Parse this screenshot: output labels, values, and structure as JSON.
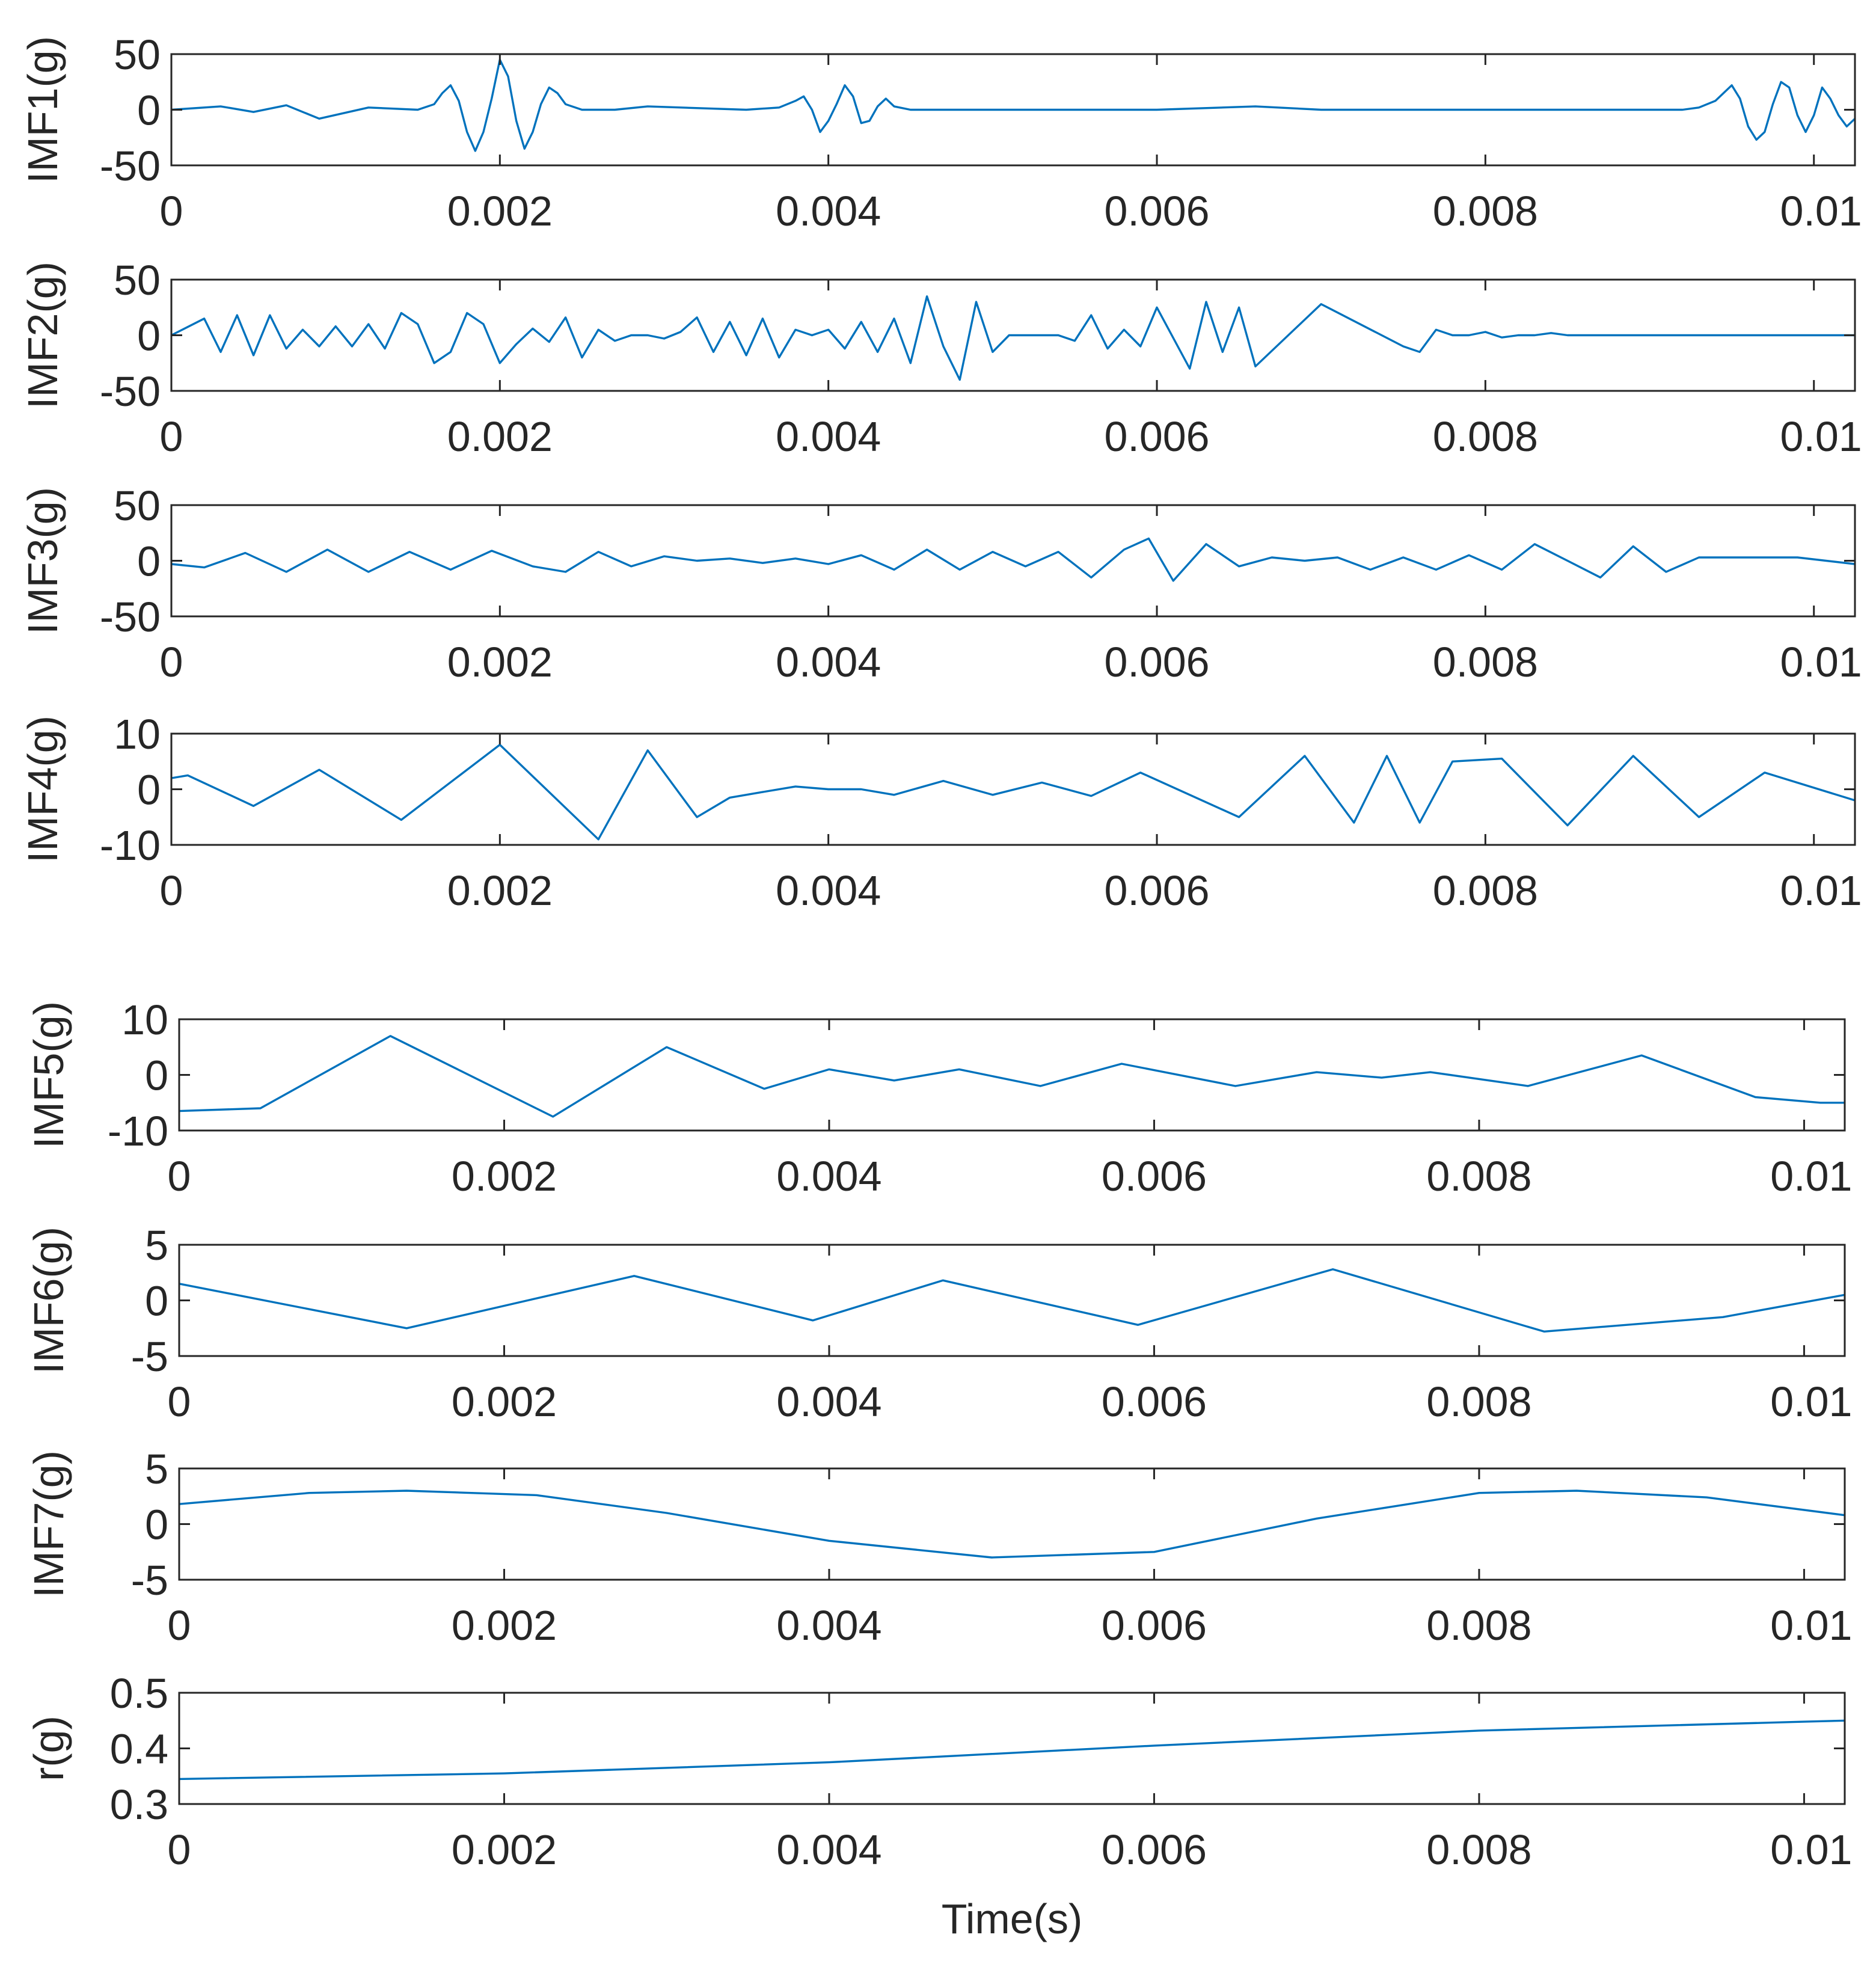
{
  "chart_data": [
    {
      "type": "line",
      "ylabel": "IMF1(g)",
      "xlim": [
        0,
        0.01025
      ],
      "ylim": [
        -50,
        50
      ],
      "yticks": [
        "50",
        "0",
        "-50"
      ],
      "xticks": [
        "0",
        "0.002",
        "0.004",
        "0.006",
        "0.008",
        "0.01"
      ],
      "series": [
        {
          "name": "IMF1",
          "x": [
            0,
            0.0003,
            0.0005,
            0.0007,
            0.0009,
            0.0012,
            0.0015,
            0.0016,
            0.00165,
            0.0017,
            0.00175,
            0.0018,
            0.00185,
            0.0019,
            0.00195,
            0.002,
            0.00205,
            0.0021,
            0.00215,
            0.0022,
            0.00225,
            0.0023,
            0.00235,
            0.0024,
            0.0025,
            0.0027,
            0.0029,
            0.0035,
            0.0037,
            0.0038,
            0.00385,
            0.0039,
            0.00395,
            0.004,
            0.00405,
            0.0041,
            0.00415,
            0.0042,
            0.00425,
            0.0043,
            0.00435,
            0.0044,
            0.0045,
            0.005,
            0.006,
            0.0066,
            0.007,
            0.008,
            0.009,
            0.0092,
            0.0093,
            0.0094,
            0.00945,
            0.0095,
            0.00955,
            0.0096,
            0.00965,
            0.0097,
            0.00975,
            0.0098,
            0.00985,
            0.0099,
            0.00995,
            0.01,
            0.01005,
            0.0101,
            0.01015,
            0.0102,
            0.01025
          ],
          "y": [
            0,
            3,
            -2,
            4,
            -8,
            2,
            0,
            5,
            15,
            22,
            8,
            -20,
            -37,
            -20,
            10,
            45,
            30,
            -10,
            -35,
            -20,
            5,
            20,
            15,
            5,
            0,
            0,
            3,
            0,
            2,
            8,
            12,
            0,
            -20,
            -10,
            5,
            22,
            12,
            -12,
            -10,
            3,
            10,
            3,
            0,
            0,
            0,
            3,
            0,
            0,
            0,
            0,
            2,
            8,
            15,
            22,
            10,
            -15,
            -27,
            -20,
            5,
            25,
            20,
            -5,
            -20,
            -5,
            20,
            10,
            -5,
            -15,
            -8
          ]
        }
      ]
    },
    {
      "type": "line",
      "ylabel": "IMF2(g)",
      "xlim": [
        0,
        0.01025
      ],
      "ylim": [
        -50,
        50
      ],
      "yticks": [
        "50",
        "0",
        "-50"
      ],
      "xticks": [
        "0",
        "0.002",
        "0.004",
        "0.006",
        "0.008",
        "0.01"
      ],
      "series": [
        {
          "name": "IMF2",
          "x": [
            0,
            0.0002,
            0.0003,
            0.0004,
            0.0005,
            0.0006,
            0.0007,
            0.0008,
            0.0009,
            0.001,
            0.0011,
            0.0012,
            0.0013,
            0.0014,
            0.0015,
            0.0016,
            0.0017,
            0.0018,
            0.0019,
            0.002,
            0.0021,
            0.0022,
            0.0023,
            0.0024,
            0.0025,
            0.0026,
            0.0027,
            0.0028,
            0.0029,
            0.003,
            0.0031,
            0.0032,
            0.0033,
            0.0034,
            0.0035,
            0.0036,
            0.0037,
            0.0038,
            0.0039,
            0.004,
            0.0041,
            0.0042,
            0.0043,
            0.0044,
            0.0045,
            0.0046,
            0.0047,
            0.0048,
            0.0049,
            0.005,
            0.0051,
            0.0052,
            0.0053,
            0.0054,
            0.0055,
            0.0056,
            0.0057,
            0.0058,
            0.0059,
            0.006,
            0.0062,
            0.0063,
            0.0064,
            0.0065,
            0.0066,
            0.007,
            0.0075,
            0.0076,
            0.0077,
            0.0078,
            0.0079,
            0.008,
            0.0081,
            0.0082,
            0.0083,
            0.0084,
            0.0085,
            0.0086,
            0.0087,
            0.0088,
            0.0089,
            0.009,
            0.0091,
            0.0092,
            0.0093,
            0.0094,
            0.0095,
            0.0096,
            0.0097,
            0.0098,
            0.0099,
            0.01,
            0.0101,
            0.01025
          ],
          "y": [
            0,
            15,
            -15,
            18,
            -18,
            18,
            -12,
            5,
            -10,
            8,
            -10,
            10,
            -12,
            20,
            10,
            -25,
            -15,
            20,
            10,
            -25,
            -8,
            6,
            -6,
            16,
            -20,
            5,
            -5,
            0,
            0,
            -3,
            3,
            16,
            -15,
            12,
            -18,
            15,
            -20,
            5,
            0,
            5,
            -12,
            12,
            -15,
            15,
            -25,
            35,
            -10,
            -40,
            30,
            -15,
            0,
            0,
            0,
            0,
            -5,
            18,
            -12,
            5,
            -10,
            25,
            -30,
            30,
            -15,
            25,
            -28,
            28,
            -10,
            -15,
            5,
            0,
            0,
            3,
            -2,
            0,
            0,
            2,
            0,
            0,
            0,
            0,
            0,
            0,
            0,
            0,
            0,
            0,
            0,
            0,
            0,
            0,
            0,
            0,
            0,
            0
          ]
        }
      ]
    },
    {
      "type": "line",
      "ylabel": "IMF3(g)",
      "xlim": [
        0,
        0.01025
      ],
      "ylim": [
        -50,
        50
      ],
      "yticks": [
        "50",
        "0",
        "-50"
      ],
      "xticks": [
        "0",
        "0.002",
        "0.004",
        "0.006",
        "0.008",
        "0.01"
      ],
      "series": [
        {
          "name": "IMF3",
          "x": [
            0,
            0.0002,
            0.00045,
            0.0007,
            0.00095,
            0.0012,
            0.00145,
            0.0017,
            0.00195,
            0.0022,
            0.0024,
            0.0026,
            0.0028,
            0.003,
            0.0032,
            0.0034,
            0.0036,
            0.0038,
            0.004,
            0.0042,
            0.0044,
            0.0046,
            0.0048,
            0.005,
            0.0052,
            0.0054,
            0.0056,
            0.0058,
            0.00595,
            0.0061,
            0.0063,
            0.0065,
            0.0067,
            0.0069,
            0.0071,
            0.0073,
            0.0075,
            0.0077,
            0.0079,
            0.0081,
            0.0083,
            0.0085,
            0.0087,
            0.0089,
            0.0091,
            0.0093,
            0.0095,
            0.0097,
            0.0099,
            0.01025
          ],
          "y": [
            -3,
            -6,
            7,
            -10,
            10,
            -10,
            8,
            -8,
            9,
            -5,
            -10,
            8,
            -5,
            4,
            0,
            2,
            -2,
            2,
            -3,
            5,
            -8,
            10,
            -8,
            8,
            -5,
            8,
            -15,
            10,
            20,
            -18,
            15,
            -5,
            3,
            0,
            3,
            -8,
            3,
            -8,
            5,
            -8,
            15,
            0,
            -15,
            13,
            -10,
            3,
            3,
            3,
            3,
            -3
          ]
        }
      ]
    },
    {
      "type": "line",
      "ylabel": "IMF4(g)",
      "xlim": [
        0,
        0.01025
      ],
      "ylim": [
        -10,
        10
      ],
      "yticks": [
        "10",
        "0",
        "-10"
      ],
      "xticks": [
        "0",
        "0.002",
        "0.004",
        "0.006",
        "0.008",
        "0.01"
      ],
      "series": [
        {
          "name": "IMF4",
          "x": [
            0,
            0.0001,
            0.0005,
            0.0009,
            0.0014,
            0.002,
            0.0026,
            0.0029,
            0.0032,
            0.0034,
            0.0036,
            0.0038,
            0.004,
            0.0042,
            0.0044,
            0.0047,
            0.005,
            0.0053,
            0.0056,
            0.0059,
            0.0062,
            0.0065,
            0.0069,
            0.0072,
            0.0074,
            0.0076,
            0.0078,
            0.0081,
            0.0085,
            0.0089,
            0.0093,
            0.0097,
            0.01025
          ],
          "y": [
            2,
            2.5,
            -3,
            3.5,
            -5.5,
            8,
            -9,
            7,
            -5,
            -1.5,
            -0.5,
            0.5,
            0,
            0,
            -1,
            1.5,
            -1,
            1.2,
            -1.2,
            3,
            -1,
            -5,
            6,
            -6,
            6,
            -6,
            5,
            5.5,
            -6.5,
            6,
            -5,
            3,
            -2
          ]
        }
      ]
    },
    {
      "type": "line",
      "ylabel": "IMF5(g)",
      "xlim": [
        0,
        0.01025
      ],
      "ylim": [
        -10,
        10
      ],
      "yticks": [
        "10",
        "0",
        "-10"
      ],
      "xticks": [
        "0",
        "0.002",
        "0.004",
        "0.006",
        "0.008",
        "0.01"
      ],
      "series": [
        {
          "name": "IMF5",
          "x": [
            0,
            0.0005,
            0.0013,
            0.0023,
            0.003,
            0.0036,
            0.004,
            0.0044,
            0.0048,
            0.0053,
            0.0058,
            0.0065,
            0.007,
            0.0074,
            0.0077,
            0.0083,
            0.009,
            0.0097,
            0.0101,
            0.01025
          ],
          "y": [
            -6.5,
            -6,
            7,
            -7.5,
            5,
            -2.5,
            1,
            -1,
            1,
            -2,
            2,
            -2,
            0.5,
            -0.5,
            0.5,
            -2,
            3.5,
            -4,
            -5,
            -5
          ]
        }
      ]
    },
    {
      "type": "line",
      "ylabel": "IMF6(g)",
      "xlim": [
        0,
        0.01025
      ],
      "ylim": [
        -5,
        5
      ],
      "yticks": [
        "5",
        "0",
        "-5"
      ],
      "xticks": [
        "0",
        "0.002",
        "0.004",
        "0.006",
        "0.008",
        "0.01"
      ],
      "series": [
        {
          "name": "IMF6",
          "x": [
            0,
            0.0014,
            0.0028,
            0.0039,
            0.0047,
            0.0059,
            0.0071,
            0.0084,
            0.0095,
            0.01025
          ],
          "y": [
            1.5,
            -2.5,
            2.2,
            -1.8,
            1.8,
            -2.2,
            2.8,
            -2.8,
            -1.5,
            0.5
          ]
        }
      ]
    },
    {
      "type": "line",
      "ylabel": "IMF7(g)",
      "xlim": [
        0,
        0.01025
      ],
      "ylim": [
        -5,
        5
      ],
      "yticks": [
        "5",
        "0",
        "-5"
      ],
      "xticks": [
        "0",
        "0.002",
        "0.004",
        "0.006",
        "0.008",
        "0.01"
      ],
      "series": [
        {
          "name": "IMF7",
          "x": [
            0,
            0.0008,
            0.0014,
            0.0022,
            0.003,
            0.004,
            0.005,
            0.006,
            0.007,
            0.008,
            0.0086,
            0.0094,
            0.01025
          ],
          "y": [
            1.8,
            2.8,
            3.0,
            2.6,
            1.0,
            -1.5,
            -3.0,
            -2.5,
            0.5,
            2.8,
            3.0,
            2.4,
            0.8
          ]
        }
      ]
    },
    {
      "type": "line",
      "ylabel": "r(g)",
      "xlabel": "Time(s)",
      "xlim": [
        0,
        0.01025
      ],
      "ylim": [
        0.3,
        0.5
      ],
      "yticks": [
        "0.5",
        "0.4",
        "0.3"
      ],
      "xticks": [
        "0",
        "0.002",
        "0.004",
        "0.006",
        "0.008",
        "0.01"
      ],
      "series": [
        {
          "name": "r",
          "x": [
            0,
            0.002,
            0.004,
            0.006,
            0.008,
            0.01,
            0.01025
          ],
          "y": [
            0.345,
            0.355,
            0.375,
            0.405,
            0.432,
            0.448,
            0.45
          ]
        }
      ]
    }
  ]
}
